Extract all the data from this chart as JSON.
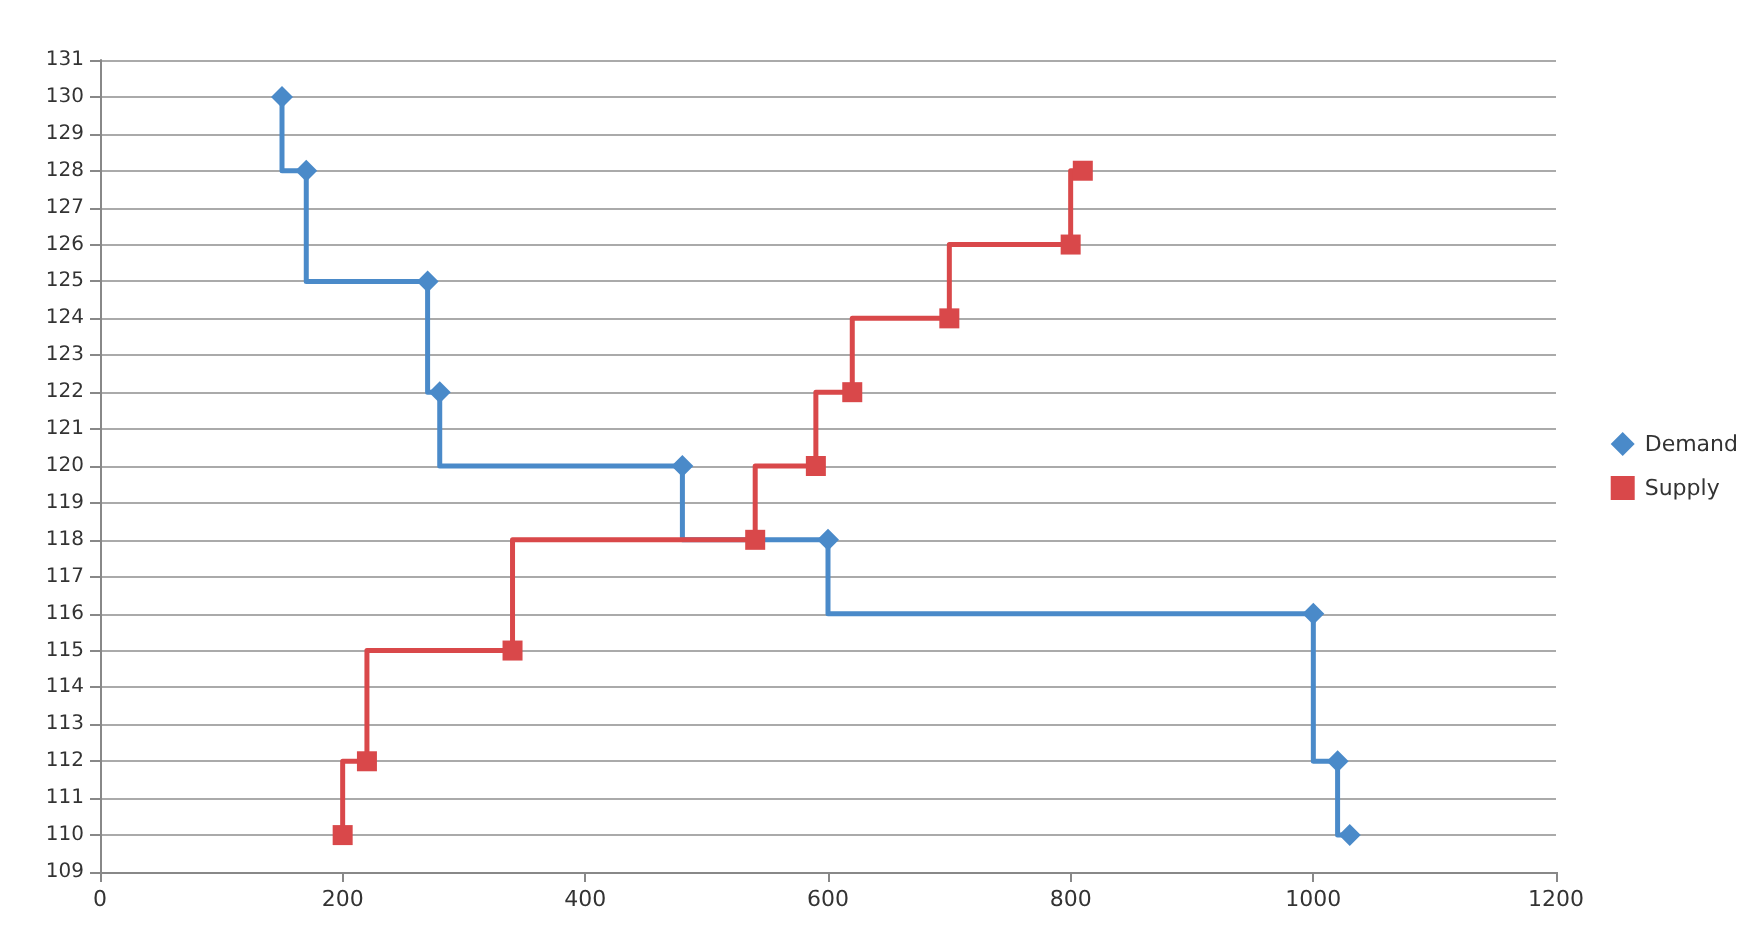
{
  "chart_data": {
    "type": "step",
    "xlim": [
      0,
      1200
    ],
    "xticks": [
      0,
      200,
      400,
      600,
      800,
      1000,
      1200
    ],
    "ylim": [
      109,
      131
    ],
    "yticks": [
      109,
      110,
      111,
      112,
      113,
      114,
      115,
      116,
      117,
      118,
      119,
      120,
      121,
      122,
      123,
      124,
      125,
      126,
      127,
      128,
      129,
      130,
      131
    ],
    "grid": "y",
    "legend": "right",
    "line_style": "solid",
    "series": [
      {
        "name": "Demand",
        "color": "#4a8ac9",
        "marker": "diamond",
        "x": [
          150,
          170,
          270,
          280,
          480,
          600,
          1000,
          1020,
          1030
        ],
        "values": [
          130,
          128,
          125,
          122,
          120,
          118,
          116,
          112,
          110
        ]
      },
      {
        "name": "Supply",
        "color": "#d9484a",
        "marker": "square",
        "x": [
          200,
          220,
          340,
          540,
          590,
          620,
          700,
          800,
          810
        ],
        "values": [
          110,
          112,
          115,
          118,
          120,
          122,
          124,
          126,
          128
        ]
      }
    ]
  }
}
